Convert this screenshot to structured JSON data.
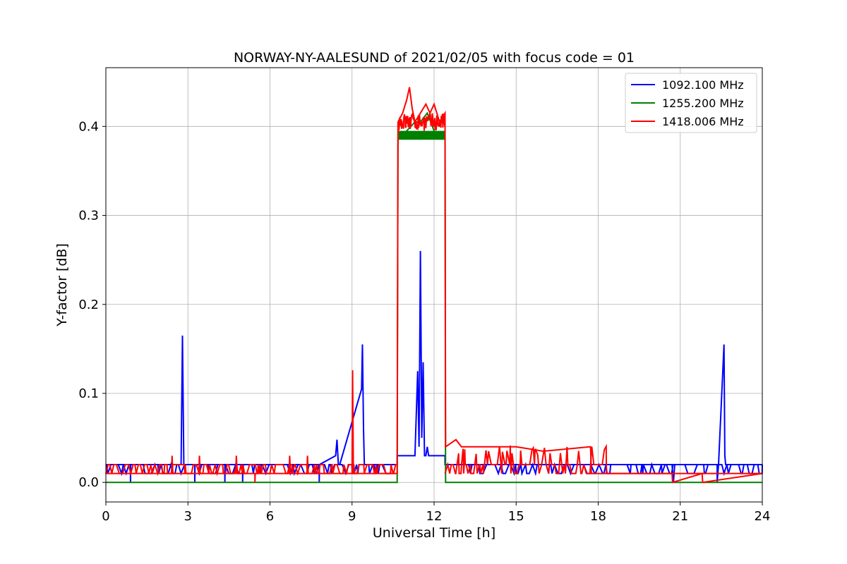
{
  "chart_data": {
    "type": "line",
    "title": "NORWAY-NY-AALESUND of 2021/02/05 with focus code = 01",
    "xlabel": "Universal Time [h]",
    "ylabel": "Y-factor [dB]",
    "xlim": [
      0,
      24
    ],
    "ylim": [
      -0.022,
      0.466
    ],
    "xticks": [
      0,
      3,
      6,
      9,
      12,
      15,
      18,
      21,
      24
    ],
    "yticks": [
      0.0,
      0.1,
      0.2,
      0.3,
      0.4
    ],
    "ytick_labels": [
      "0.0",
      "0.1",
      "0.2",
      "0.3",
      "0.4"
    ],
    "grid": true,
    "legend_position": "top-right",
    "series": [
      {
        "name": "1092.100 MHz",
        "color": "#0000ff",
        "baseline": 0.02,
        "low": 0.01,
        "x": [
          0,
          0.9,
          0.9,
          0.91,
          2.75,
          2.8,
          2.85,
          3.25,
          3.25,
          3.26,
          4.35,
          4.35,
          4.36,
          5.0,
          5.0,
          5.01,
          7.8,
          7.8,
          7.81,
          8.4,
          8.45,
          8.5,
          8.55,
          9.35,
          9.38,
          9.42,
          9.45,
          9.5,
          10.65,
          10.65,
          10.75,
          11.0,
          11.3,
          11.4,
          11.45,
          11.5,
          11.55,
          11.6,
          11.65,
          11.7,
          11.75,
          11.8,
          12.0,
          12.1,
          12.4,
          12.4,
          13.0,
          20.7,
          20.75,
          20.8,
          20.85,
          22.35,
          22.35,
          22.4,
          22.6,
          22.63,
          22.66,
          22.7,
          24
        ],
        "y": [
          0.02,
          0.02,
          0.0,
          0.02,
          0.02,
          0.165,
          0.02,
          0.02,
          0.0,
          0.02,
          0.02,
          0.0,
          0.02,
          0.02,
          0.0,
          0.02,
          0.02,
          0.0,
          0.02,
          0.03,
          0.048,
          0.02,
          0.02,
          0.105,
          0.155,
          0.06,
          0.02,
          0.02,
          0.02,
          0.03,
          0.03,
          0.03,
          0.03,
          0.125,
          0.04,
          0.26,
          0.05,
          0.135,
          0.03,
          0.03,
          0.04,
          0.03,
          0.03,
          0.03,
          0.03,
          0.02,
          0.02,
          0.02,
          0.0,
          0.02,
          0.02,
          0.02,
          0.0,
          0.02,
          0.155,
          0.03,
          0.02,
          0.02,
          0.02
        ]
      },
      {
        "name": "1255.200 MHz",
        "color": "#008000",
        "x": [
          0,
          10.65,
          10.68,
          11.0,
          11.3,
          11.5,
          11.75,
          12.0,
          12.4,
          12.42,
          24
        ],
        "y": [
          0.0,
          0.0,
          0.385,
          0.395,
          0.405,
          0.405,
          0.415,
          0.395,
          0.385,
          0.0,
          0.0
        ],
        "band": [
          10.7,
          12.4,
          0.385,
          0.395
        ]
      },
      {
        "name": "1418.006 MHz",
        "color": "#ff0000",
        "baseline": 0.01,
        "high": 0.02,
        "x": [
          0,
          2.4,
          2.42,
          2.45,
          3.4,
          3.42,
          3.45,
          4.75,
          4.77,
          4.8,
          5.45,
          5.45,
          5.46,
          6.7,
          6.72,
          6.75,
          7.35,
          7.37,
          7.4,
          9.0,
          9.02,
          9.05,
          10.65,
          10.68,
          10.85,
          11.0,
          11.1,
          11.2,
          11.3,
          11.5,
          11.7,
          11.85,
          12.0,
          12.1,
          12.2,
          12.4,
          12.42,
          12.8,
          13.0,
          14.0,
          15.0,
          16.0,
          17.7,
          17.72,
          17.75,
          18.3,
          20.7,
          20.72,
          21.8,
          21.82,
          24
        ],
        "y": [
          0.01,
          0.01,
          0.03,
          0.01,
          0.01,
          0.03,
          0.01,
          0.01,
          0.03,
          0.01,
          0.01,
          0.0,
          0.01,
          0.01,
          0.03,
          0.01,
          0.01,
          0.03,
          0.01,
          0.01,
          0.126,
          0.01,
          0.01,
          0.405,
          0.415,
          0.43,
          0.444,
          0.42,
          0.405,
          0.415,
          0.425,
          0.415,
          0.425,
          0.415,
          0.405,
          0.415,
          0.04,
          0.048,
          0.04,
          0.04,
          0.04,
          0.035,
          0.04,
          0.04,
          0.01,
          0.01,
          0.01,
          0.0,
          0.01,
          0.0,
          0.01
        ]
      }
    ]
  }
}
